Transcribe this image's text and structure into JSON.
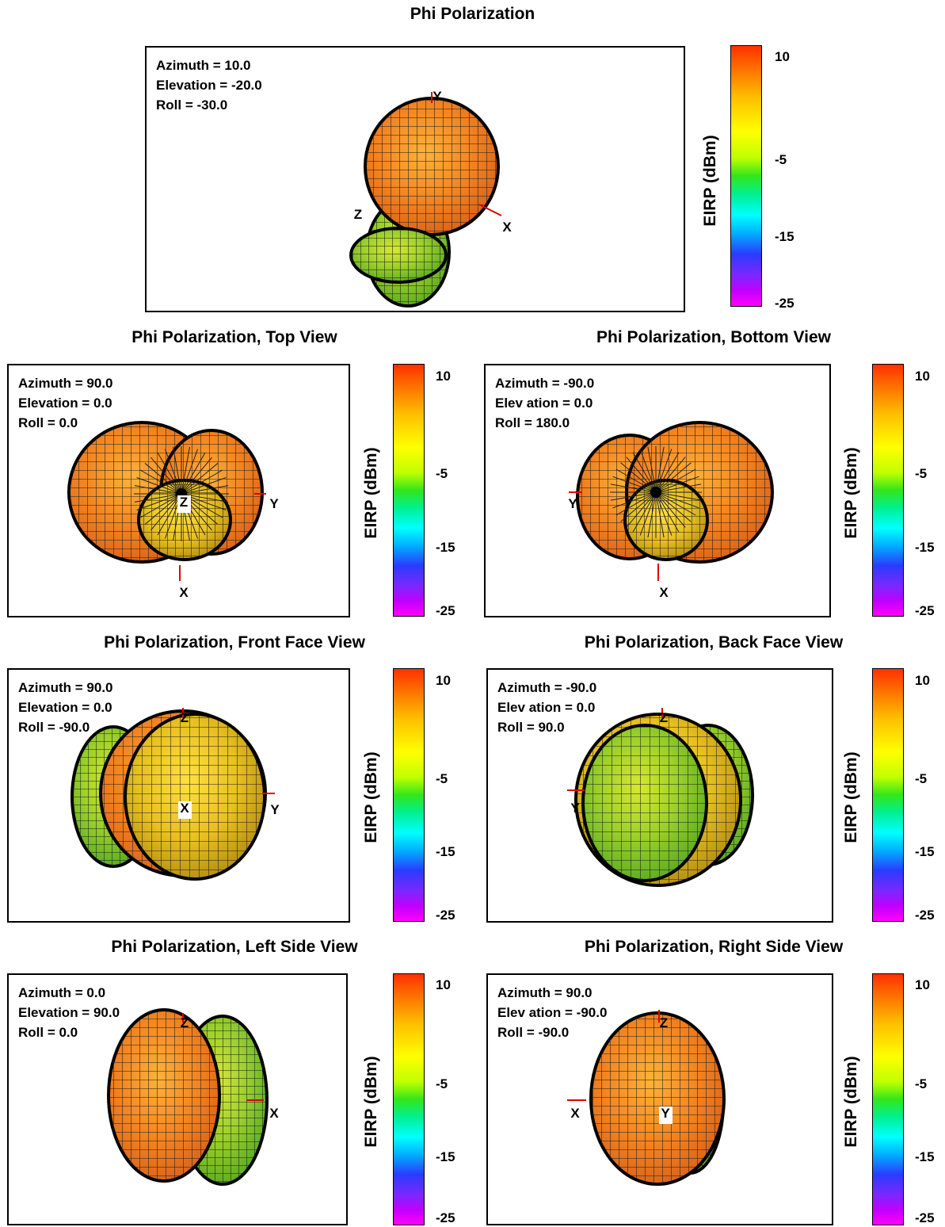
{
  "chart_data": [
    {
      "type": "3d-radiation-pattern",
      "title": "Phi Polarization",
      "params": [
        "Azimuth = 10.0",
        "Elevation = -20.0",
        "Roll = -30.0"
      ],
      "axis_labels": [
        "X",
        "Y",
        "Z"
      ],
      "colorbar": {
        "label": "EIRP  (dBm)",
        "ticks": [
          "10",
          "-5",
          "-15",
          "-25"
        ],
        "range": [
          -25,
          13
        ]
      }
    },
    {
      "type": "3d-radiation-pattern",
      "title": "Phi Polarization, Top View",
      "params": [
        "Azimuth = 90.0",
        "Elevation = 0.0",
        "Roll = 0.0"
      ],
      "axis_labels": [
        "X",
        "Y",
        "Z"
      ],
      "colorbar": {
        "label": "EIRP  (dBm)",
        "ticks": [
          "10",
          "-5",
          "-15",
          "-25"
        ],
        "range": [
          -25,
          13
        ]
      }
    },
    {
      "type": "3d-radiation-pattern",
      "title": "Phi Polarization, Bottom View",
      "params": [
        "Azimuth = -90.0",
        "Elev ation = 0.0",
        "Roll = 180.0"
      ],
      "axis_labels": [
        "X",
        "Y"
      ],
      "colorbar": {
        "label": "EIRP  (dBm)",
        "ticks": [
          "10",
          "-5",
          "-15",
          "-25"
        ],
        "range": [
          -25,
          13
        ]
      }
    },
    {
      "type": "3d-radiation-pattern",
      "title": "Phi Polarization, Front Face View",
      "params": [
        "Azimuth = 90.0",
        "Elevation = 0.0",
        "Roll = -90.0"
      ],
      "axis_labels": [
        "X",
        "Y",
        "Z"
      ],
      "colorbar": {
        "label": "EIRP  (dBm)",
        "ticks": [
          "10",
          "-5",
          "-15",
          "-25"
        ],
        "range": [
          -25,
          13
        ]
      }
    },
    {
      "type": "3d-radiation-pattern",
      "title": "Phi Polarization, Back Face View",
      "params": [
        "Azimuth = -90.0",
        "Elev ation = 0.0",
        "Roll = 90.0"
      ],
      "axis_labels": [
        "Y",
        "Z"
      ],
      "colorbar": {
        "label": "EIRP  (dBm)",
        "ticks": [
          "10",
          "-5",
          "-15",
          "-25"
        ],
        "range": [
          -25,
          13
        ]
      }
    },
    {
      "type": "3d-radiation-pattern",
      "title": "Phi Polarization, Left Side View",
      "params": [
        "Azimuth = 0.0",
        "Elevation = 90.0",
        "Roll = 0.0"
      ],
      "axis_labels": [
        "X",
        "Z"
      ],
      "colorbar": {
        "label": "EIRP  (dBm)",
        "ticks": [
          "10",
          "-5",
          "-15",
          "-25"
        ],
        "range": [
          -25,
          13
        ]
      }
    },
    {
      "type": "3d-radiation-pattern",
      "title": "Phi Polarization, Right Side View",
      "params": [
        "Azimuth = 90.0",
        "Elev ation = -90.0",
        "Roll = -90.0"
      ],
      "axis_labels": [
        "X",
        "Y",
        "Z"
      ],
      "colorbar": {
        "label": "EIRP  (dBm)",
        "ticks": [
          "10",
          "-5",
          "-15",
          "-25"
        ],
        "range": [
          -25,
          13
        ]
      }
    }
  ]
}
